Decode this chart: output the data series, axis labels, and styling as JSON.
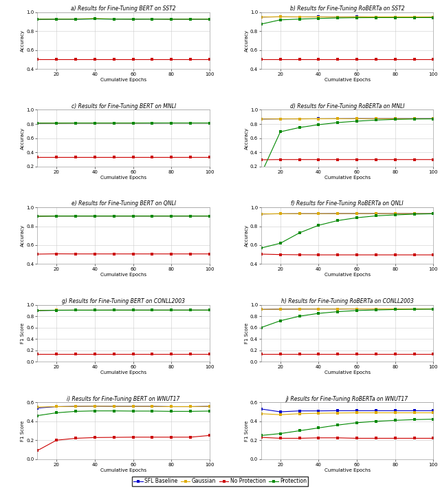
{
  "x": [
    10,
    20,
    30,
    40,
    50,
    60,
    70,
    80,
    90,
    100
  ],
  "colors": {
    "sfl": "#0000cc",
    "gaussian": "#ddaa00",
    "no_protection": "#cc0000",
    "protection": "#008800"
  },
  "markersize": 2.5,
  "linewidth": 0.8,
  "plots": [
    {
      "title": "a) Results for Fine-Tuning BERT on SST2",
      "ylabel": "Accuracy",
      "ylim": [
        0.4,
        1.0
      ],
      "yticks": [
        0.4,
        0.6,
        0.8,
        1.0
      ],
      "sfl": [
        0.925,
        0.927,
        0.927,
        0.93,
        0.928,
        0.927,
        0.928,
        0.927,
        0.927,
        0.927
      ],
      "gaussian": [
        0.927,
        0.928,
        0.929,
        0.934,
        0.929,
        0.928,
        0.929,
        0.927,
        0.928,
        0.928
      ],
      "no_protection": [
        0.505,
        0.505,
        0.505,
        0.505,
        0.505,
        0.505,
        0.505,
        0.505,
        0.505,
        0.505
      ],
      "protection": [
        0.926,
        0.927,
        0.927,
        0.93,
        0.928,
        0.928,
        0.928,
        0.927,
        0.927,
        0.927
      ]
    },
    {
      "title": "b) Results for Fine-Tuning RoBERTa on SST2",
      "ylabel": "Accuracy",
      "ylim": [
        0.4,
        1.0
      ],
      "yticks": [
        0.4,
        0.6,
        0.8,
        1.0
      ],
      "sfl": [
        0.95,
        0.952,
        0.951,
        0.952,
        0.951,
        0.952,
        0.951,
        0.951,
        0.951,
        0.95
      ],
      "gaussian": [
        0.95,
        0.952,
        0.951,
        0.951,
        0.95,
        0.951,
        0.951,
        0.951,
        0.951,
        0.95
      ],
      "no_protection": [
        0.505,
        0.505,
        0.505,
        0.505,
        0.505,
        0.505,
        0.505,
        0.505,
        0.505,
        0.505
      ],
      "protection": [
        0.875,
        0.92,
        0.928,
        0.935,
        0.94,
        0.943,
        0.944,
        0.944,
        0.944,
        0.944
      ]
    },
    {
      "title": "c) Results for Fine-Tuning BERT on MNLI",
      "ylabel": "Accuracy",
      "ylim": [
        0.2,
        1.0
      ],
      "yticks": [
        0.2,
        0.4,
        0.6,
        0.8,
        1.0
      ],
      "sfl": [
        0.81,
        0.812,
        0.813,
        0.813,
        0.813,
        0.813,
        0.813,
        0.814,
        0.814,
        0.814
      ],
      "gaussian": [
        0.812,
        0.812,
        0.813,
        0.813,
        0.813,
        0.813,
        0.814,
        0.814,
        0.814,
        0.814
      ],
      "no_protection": [
        0.33,
        0.33,
        0.33,
        0.33,
        0.33,
        0.33,
        0.33,
        0.33,
        0.33,
        0.33
      ],
      "protection": [
        0.812,
        0.812,
        0.813,
        0.813,
        0.813,
        0.813,
        0.814,
        0.814,
        0.814,
        0.814
      ]
    },
    {
      "title": "d) Results for Fine-Tuning RoBERTa on MNLI",
      "ylabel": "Accuracy",
      "ylim": [
        0.2,
        1.0
      ],
      "yticks": [
        0.2,
        0.4,
        0.6,
        0.8,
        1.0
      ],
      "sfl": [
        0.87,
        0.872,
        0.873,
        0.874,
        0.875,
        0.876,
        0.876,
        0.876,
        0.876,
        0.876
      ],
      "gaussian": [
        0.87,
        0.872,
        0.872,
        0.873,
        0.874,
        0.875,
        0.875,
        0.875,
        0.875,
        0.875
      ],
      "no_protection": [
        0.295,
        0.298,
        0.298,
        0.298,
        0.298,
        0.298,
        0.298,
        0.298,
        0.298,
        0.298
      ],
      "protection": [
        0.1,
        0.69,
        0.75,
        0.79,
        0.82,
        0.84,
        0.855,
        0.865,
        0.87,
        0.872
      ]
    },
    {
      "title": "e) Results for Fine-Tuning BERT on QNLI",
      "ylabel": "Accuracy",
      "ylim": [
        0.4,
        1.0
      ],
      "yticks": [
        0.4,
        0.6,
        0.8,
        1.0
      ],
      "sfl": [
        0.906,
        0.908,
        0.908,
        0.908,
        0.908,
        0.908,
        0.908,
        0.908,
        0.908,
        0.908
      ],
      "gaussian": [
        0.906,
        0.908,
        0.908,
        0.908,
        0.908,
        0.908,
        0.908,
        0.908,
        0.908,
        0.908
      ],
      "no_protection": [
        0.505,
        0.508,
        0.507,
        0.507,
        0.507,
        0.507,
        0.507,
        0.507,
        0.507,
        0.507
      ],
      "protection": [
        0.906,
        0.908,
        0.908,
        0.908,
        0.908,
        0.908,
        0.908,
        0.908,
        0.908,
        0.908
      ]
    },
    {
      "title": "f) Results for Fine-Tuning RoBERTa on QNLI",
      "ylabel": "Accuracy",
      "ylim": [
        0.4,
        1.0
      ],
      "yticks": [
        0.4,
        0.6,
        0.8,
        1.0
      ],
      "sfl": [
        0.93,
        0.932,
        0.933,
        0.933,
        0.934,
        0.934,
        0.934,
        0.934,
        0.934,
        0.934
      ],
      "gaussian": [
        0.93,
        0.932,
        0.933,
        0.933,
        0.934,
        0.934,
        0.934,
        0.934,
        0.934,
        0.934
      ],
      "no_protection": [
        0.505,
        0.5,
        0.498,
        0.497,
        0.497,
        0.497,
        0.497,
        0.497,
        0.497,
        0.497
      ],
      "protection": [
        0.57,
        0.62,
        0.73,
        0.81,
        0.86,
        0.89,
        0.91,
        0.92,
        0.928,
        0.932
      ]
    },
    {
      "title": "g) Results for Fine-Tuning BERT on CONLL2003",
      "ylabel": "F1 Score",
      "ylim": [
        0.0,
        1.0
      ],
      "yticks": [
        0.0,
        0.2,
        0.4,
        0.6,
        0.8,
        1.0
      ],
      "sfl": [
        0.9,
        0.905,
        0.906,
        0.906,
        0.907,
        0.907,
        0.907,
        0.907,
        0.907,
        0.907
      ],
      "gaussian": [
        0.902,
        0.906,
        0.907,
        0.907,
        0.907,
        0.907,
        0.907,
        0.907,
        0.907,
        0.907
      ],
      "no_protection": [
        0.14,
        0.14,
        0.14,
        0.14,
        0.14,
        0.14,
        0.14,
        0.14,
        0.14,
        0.14
      ],
      "protection": [
        0.9,
        0.905,
        0.906,
        0.906,
        0.907,
        0.907,
        0.907,
        0.907,
        0.907,
        0.907
      ]
    },
    {
      "title": "h) Results for Fine-Tuning RoBERTa on CONLL2003",
      "ylabel": "F1 Score",
      "ylim": [
        0.0,
        1.0
      ],
      "yticks": [
        0.0,
        0.2,
        0.4,
        0.6,
        0.8,
        1.0
      ],
      "sfl": [
        0.92,
        0.924,
        0.926,
        0.927,
        0.927,
        0.928,
        0.928,
        0.928,
        0.928,
        0.928
      ],
      "gaussian": [
        0.92,
        0.924,
        0.926,
        0.927,
        0.927,
        0.928,
        0.928,
        0.928,
        0.928,
        0.928
      ],
      "no_protection": [
        0.13,
        0.13,
        0.13,
        0.13,
        0.13,
        0.13,
        0.13,
        0.13,
        0.13,
        0.13
      ],
      "protection": [
        0.6,
        0.72,
        0.8,
        0.85,
        0.88,
        0.9,
        0.91,
        0.918,
        0.922,
        0.925
      ]
    },
    {
      "title": "i) Results for Fine-Tuning BERT on WNUT17",
      "ylabel": "F1 Score",
      "ylim": [
        0.0,
        0.6
      ],
      "yticks": [
        0.0,
        0.2,
        0.4,
        0.6
      ],
      "sfl": [
        0.54,
        0.555,
        0.558,
        0.56,
        0.558,
        0.558,
        0.558,
        0.555,
        0.555,
        0.558
      ],
      "gaussian": [
        0.55,
        0.555,
        0.558,
        0.56,
        0.558,
        0.558,
        0.558,
        0.555,
        0.555,
        0.558
      ],
      "no_protection": [
        0.09,
        0.2,
        0.22,
        0.228,
        0.23,
        0.232,
        0.232,
        0.232,
        0.232,
        0.25
      ],
      "protection": [
        0.46,
        0.49,
        0.505,
        0.51,
        0.51,
        0.508,
        0.508,
        0.505,
        0.505,
        0.508
      ]
    },
    {
      "title": "j) Results for Fine-Tuning RoBERTa on WNUT17",
      "ylabel": "F1 Score",
      "ylim": [
        0.0,
        0.6
      ],
      "yticks": [
        0.0,
        0.2,
        0.4,
        0.6
      ],
      "sfl": [
        0.53,
        0.5,
        0.51,
        0.51,
        0.512,
        0.512,
        0.512,
        0.512,
        0.512,
        0.512
      ],
      "gaussian": [
        0.48,
        0.47,
        0.48,
        0.485,
        0.488,
        0.49,
        0.49,
        0.49,
        0.49,
        0.49
      ],
      "no_protection": [
        0.23,
        0.22,
        0.22,
        0.225,
        0.225,
        0.22,
        0.22,
        0.22,
        0.22,
        0.22
      ],
      "protection": [
        0.25,
        0.27,
        0.3,
        0.33,
        0.36,
        0.385,
        0.4,
        0.41,
        0.418,
        0.422
      ]
    }
  ],
  "legend_labels": [
    "SFL Baseline",
    "Gaussian",
    "No Protection",
    "Protection"
  ],
  "xlabel": "Cumulative Epochs",
  "xticks": [
    20,
    40,
    60,
    80,
    100
  ],
  "title_fontsize": 5.5,
  "axis_label_fontsize": 5.0,
  "tick_fontsize": 5.0,
  "legend_fontsize": 5.5
}
